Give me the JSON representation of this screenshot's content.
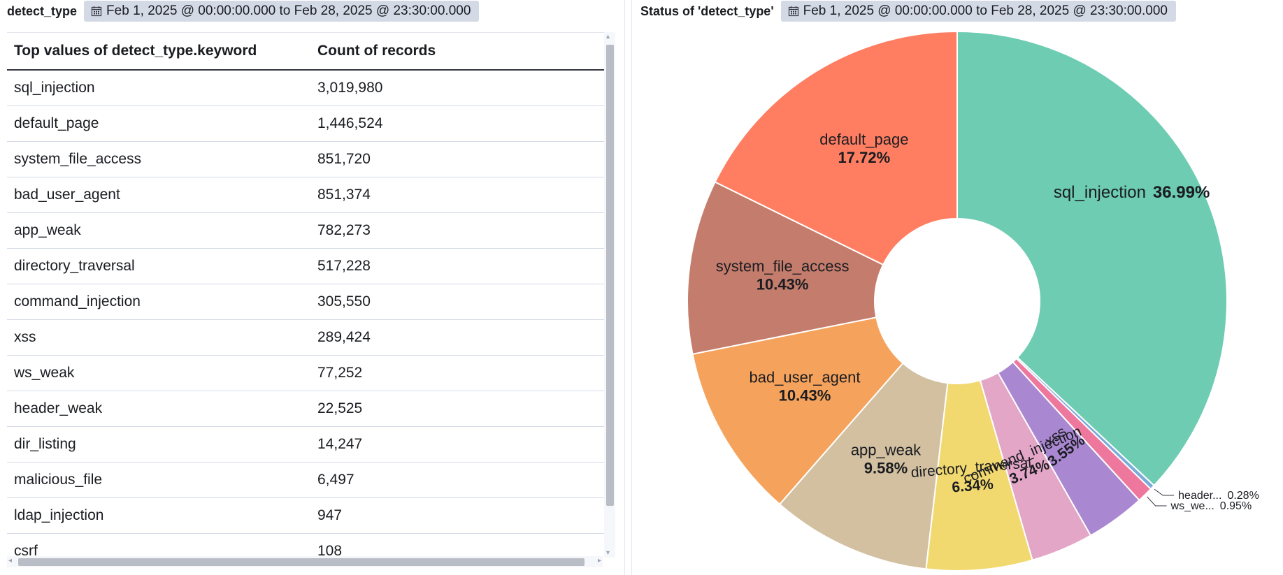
{
  "left_panel": {
    "title": "detect_type",
    "time_range": "Feb 1, 2025 @ 00:00:00.000 to Feb 28, 2025 @ 23:30:00.000",
    "table": {
      "columns": [
        "Top values of detect_type.keyword",
        "Count of records"
      ],
      "rows": [
        [
          "sql_injection",
          "3,019,980"
        ],
        [
          "default_page",
          "1,446,524"
        ],
        [
          "system_file_access",
          "851,720"
        ],
        [
          "bad_user_agent",
          "851,374"
        ],
        [
          "app_weak",
          "782,273"
        ],
        [
          "directory_traversal",
          "517,228"
        ],
        [
          "command_injection",
          "305,550"
        ],
        [
          "xss",
          "289,424"
        ],
        [
          "ws_weak",
          "77,252"
        ],
        [
          "header_weak",
          "22,525"
        ],
        [
          "dir_listing",
          "14,247"
        ],
        [
          "malicious_file",
          "6,497"
        ],
        [
          "ldap_injection",
          "947"
        ],
        [
          "csrf",
          "108"
        ]
      ]
    }
  },
  "right_panel": {
    "title": "Status of 'detect_type'",
    "time_range": "Feb 1, 2025 @ 00:00:00.000 to Feb 28, 2025 @ 23:30:00.000"
  },
  "icons": {
    "calendar": "calendar-icon"
  },
  "chart_data": {
    "type": "pie",
    "donut": true,
    "title": "",
    "slices": [
      {
        "label": "sql_injection",
        "percent": 36.99,
        "color": "#6dccb1",
        "label_text": "sql_injection"
      },
      {
        "label": "header_weak",
        "percent": 0.28,
        "color": "#79aad9",
        "label_text": "header...",
        "outside": true
      },
      {
        "label": "ws_weak",
        "percent": 0.95,
        "color": "#ee789d",
        "label_text": "ws_we...",
        "outside": true
      },
      {
        "label": "xss",
        "percent": 3.55,
        "color": "#a987d1",
        "label_text": "xss"
      },
      {
        "label": "command_injection",
        "percent": 3.74,
        "color": "#e4a6c7",
        "label_text": "command_injection"
      },
      {
        "label": "directory_traversal",
        "percent": 6.34,
        "color": "#f1d86f",
        "label_text": "directory_traversal"
      },
      {
        "label": "app_weak",
        "percent": 9.58,
        "color": "#d2c0a0",
        "label_text": "app_weak"
      },
      {
        "label": "bad_user_agent",
        "percent": 10.43,
        "color": "#f5a35c",
        "label_text": "bad_user_agent"
      },
      {
        "label": "system_file_access",
        "percent": 10.43,
        "color": "#c47c6c",
        "label_text": "system_file_access"
      },
      {
        "label": "default_page",
        "percent": 17.72,
        "color": "#ff7e62",
        "label_text": "default_page"
      }
    ],
    "percent_labels": [
      "36.99%",
      "0.28%",
      "0.95%",
      "3.55%",
      "3.74%",
      "6.34%",
      "9.58%",
      "10.43%",
      "10.43%",
      "17.72%"
    ]
  }
}
